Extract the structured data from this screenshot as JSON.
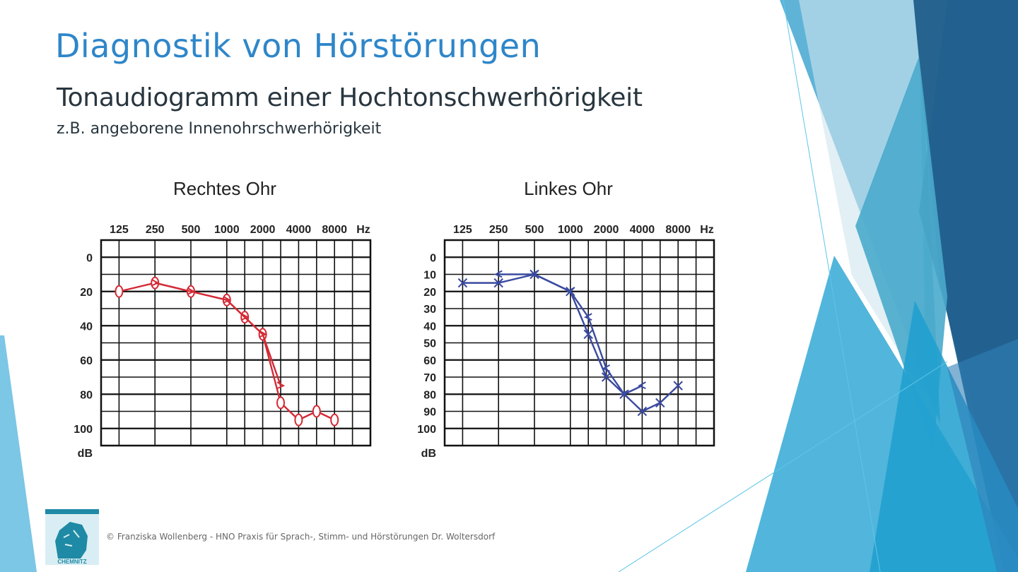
{
  "title": "Diagnostik von Hörstörungen",
  "subtitle": "Tonaudiogramm einer Hochtonschwerhörigkeit",
  "subtitle2": "z.B. angeborene Innenohrschwerhörigkeit",
  "footer": "© Franziska Wollenberg - HNO Praxis für Sprach-, Stimm- und Hörstörungen Dr. Woltersdorf",
  "logo": {
    "text": "CHEMNITZ",
    "color": "#1f8aa5"
  },
  "chart_data": [
    {
      "type": "line",
      "title": "Rechtes Ohr",
      "x_ticks": [
        "125",
        "250",
        "500",
        "1000",
        "2000",
        "4000",
        "8000"
      ],
      "x_unit": "Hz",
      "y_ticks": [
        "0",
        "20",
        "40",
        "60",
        "80",
        "100"
      ],
      "y_unit": "dB",
      "ylim": [
        -10,
        110
      ],
      "y_inverted": true,
      "grid": true,
      "color": "#d42a35",
      "series": [
        {
          "marker": "circle",
          "x": [
            125,
            250,
            500,
            1000,
            1500,
            2000,
            3000,
            4000,
            6000,
            8000
          ],
          "y": [
            20,
            15,
            20,
            25,
            35,
            45,
            85,
            95,
            90,
            95
          ]
        },
        {
          "marker": "bracket-right",
          "x": [
            250,
            500,
            1000,
            1500,
            2000,
            3000
          ],
          "y": [
            15,
            20,
            25,
            35,
            45,
            75
          ]
        }
      ]
    },
    {
      "type": "line",
      "title": "Linkes Ohr",
      "x_ticks": [
        "125",
        "250",
        "500",
        "1000",
        "2000",
        "4000",
        "8000"
      ],
      "x_unit": "Hz",
      "y_ticks": [
        "0",
        "10",
        "20",
        "30",
        "40",
        "50",
        "60",
        "70",
        "80",
        "90",
        "100"
      ],
      "y_unit": "dB",
      "ylim": [
        -10,
        110
      ],
      "y_inverted": true,
      "grid": true,
      "color": "#3a4aa0",
      "series": [
        {
          "marker": "cross",
          "x": [
            125,
            250,
            500,
            1000,
            1500,
            2000,
            3000,
            4000,
            6000,
            8000
          ],
          "y": [
            15,
            15,
            10,
            20,
            45,
            70,
            80,
            90,
            85,
            75
          ]
        },
        {
          "marker": "bracket-left",
          "x": [
            250,
            500,
            1000,
            1500,
            2000,
            3000,
            4000
          ],
          "y": [
            10,
            10,
            20,
            35,
            65,
            80,
            75
          ]
        }
      ]
    }
  ]
}
